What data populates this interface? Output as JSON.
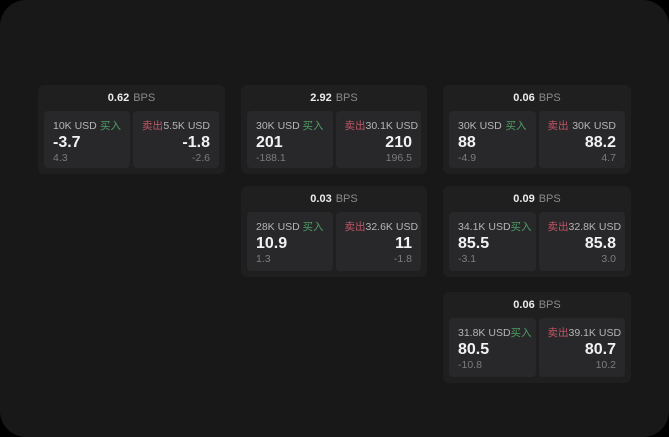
{
  "labels": {
    "bps": "BPS",
    "buy": "买入",
    "sell": "卖出"
  },
  "colors": {
    "buy": "#4d9e63",
    "sell": "#c15465",
    "window_background": "#181818",
    "card_background": "#1f1f20",
    "tile_background": "#28282a"
  },
  "cards": [
    {
      "col": 0,
      "row": 0,
      "bps": "0.62",
      "buy": {
        "notional": "10K USD",
        "price": "-3.7",
        "delta": "4.3"
      },
      "sell": {
        "notional": "5.5K USD",
        "price": "-1.8",
        "delta": "-2.6"
      }
    },
    {
      "col": 1,
      "row": 0,
      "bps": "2.92",
      "buy": {
        "notional": "30K USD",
        "price": "201",
        "delta": "-188.1"
      },
      "sell": {
        "notional": "30.1K USD",
        "price": "210",
        "delta": "196.5"
      }
    },
    {
      "col": 2,
      "row": 0,
      "bps": "0.06",
      "buy": {
        "notional": "30K USD",
        "price": "88",
        "delta": "-4.9"
      },
      "sell": {
        "notional": "30K USD",
        "price": "88.2",
        "delta": "4.7"
      }
    },
    {
      "col": 1,
      "row": 1,
      "bps": "0.03",
      "buy": {
        "notional": "28K USD",
        "price": "10.9",
        "delta": "1.3"
      },
      "sell": {
        "notional": "32.6K USD",
        "price": "11",
        "delta": "-1.8"
      }
    },
    {
      "col": 2,
      "row": 1,
      "bps": "0.09",
      "buy": {
        "notional": "34.1K USD",
        "price": "85.5",
        "delta": "-3.1"
      },
      "sell": {
        "notional": "32.8K USD",
        "price": "85.8",
        "delta": "3.0"
      }
    },
    {
      "col": 2,
      "row": 2,
      "bps": "0.06",
      "buy": {
        "notional": "31.8K USD",
        "price": "80.5",
        "delta": "-10.8"
      },
      "sell": {
        "notional": "39.1K USD",
        "price": "80.7",
        "delta": "10.2"
      }
    }
  ]
}
